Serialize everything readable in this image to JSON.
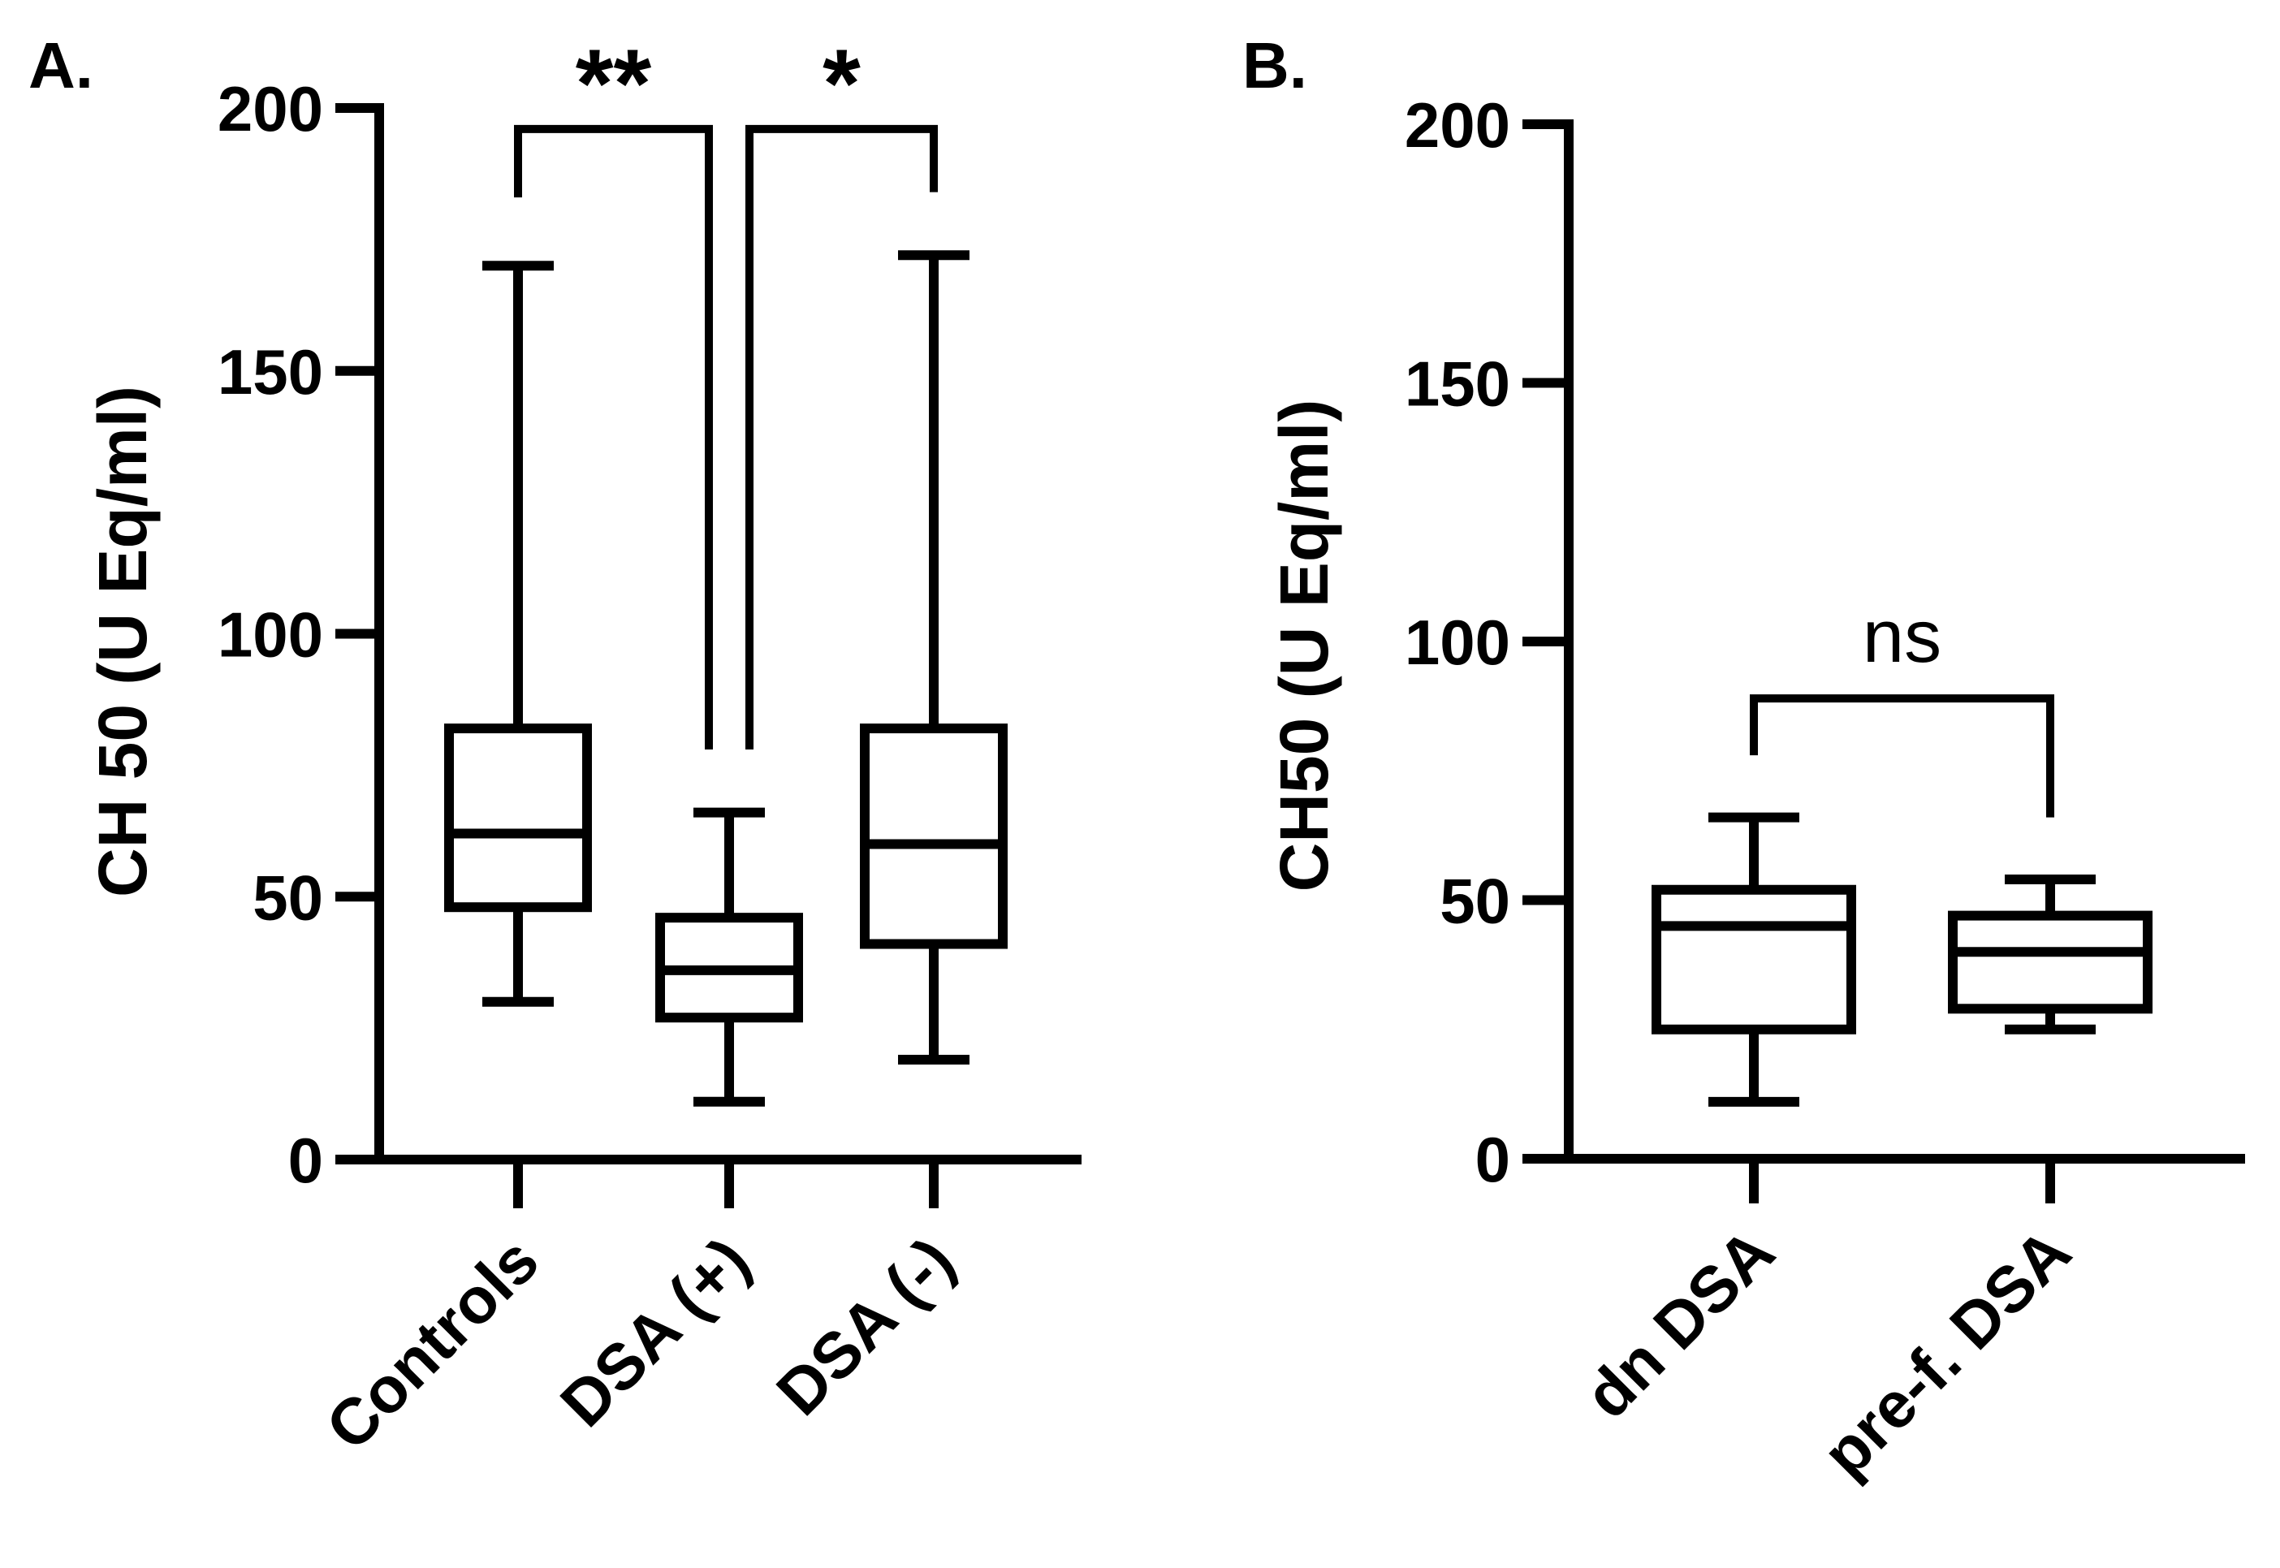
{
  "chart_data": [
    {
      "type": "box",
      "panel_label": "A.",
      "ylabel": "CH 50 (U Eq/ml)",
      "ylim": [
        0,
        200
      ],
      "yticks": [
        "0",
        "50",
        "100",
        "150",
        "200"
      ],
      "categories": [
        "Controls",
        "DSA (+)",
        "DSA (-)"
      ],
      "boxes": [
        {
          "name": "Controls",
          "min": 30,
          "q1": 48,
          "median": 62,
          "q3": 82,
          "max": 170
        },
        {
          "name": "DSA (+)",
          "min": 11,
          "q1": 27,
          "median": 36,
          "q3": 46,
          "max": 66
        },
        {
          "name": "DSA (-)",
          "min": 19,
          "q1": 41,
          "median": 60,
          "q3": 82,
          "max": 172
        }
      ],
      "comparisons": [
        {
          "from": "Controls",
          "to": "DSA (+)",
          "label": "**",
          "from_tip": 183,
          "to_tip": 78,
          "top": 196
        },
        {
          "from": "DSA (+)",
          "to": "DSA (-)",
          "label": "*",
          "from_tip": 78,
          "to_tip": 184,
          "top": 196
        }
      ]
    },
    {
      "type": "box",
      "panel_label": "B.",
      "ylabel": "CH50 (U Eq/ml)",
      "ylim": [
        0,
        200
      ],
      "yticks": [
        "0",
        "50",
        "100",
        "150",
        "200"
      ],
      "categories": [
        "dn DSA",
        "pre-f. DSA"
      ],
      "boxes": [
        {
          "name": "dn DSA",
          "min": 11,
          "q1": 25,
          "median": 45,
          "q3": 52,
          "max": 66
        },
        {
          "name": "pre-f. DSA",
          "min": 25,
          "q1": 29,
          "median": 40,
          "q3": 47,
          "max": 54
        }
      ],
      "comparisons": [
        {
          "from": "dn DSA",
          "to": "pre-f. DSA",
          "label": "ns",
          "from_tip": 78,
          "to_tip": 66,
          "top": 89
        }
      ]
    }
  ]
}
